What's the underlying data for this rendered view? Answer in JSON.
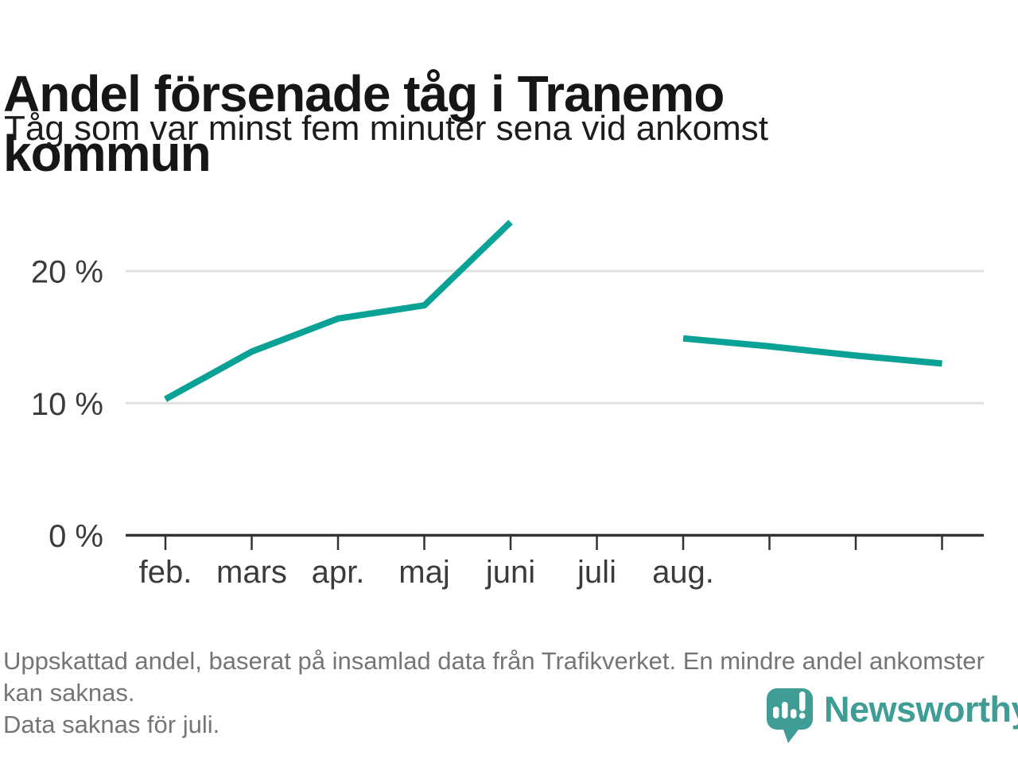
{
  "header": {
    "title": "Andel försenade tåg i Tranemo kommun",
    "subtitle": "Tåg som var minst fem minuter sena vid ankomst"
  },
  "chart_data": {
    "type": "line",
    "title": "Andel försenade tåg i Tranemo kommun",
    "subtitle": "Tåg som var minst fem minuter sena vid ankomst",
    "x_tick_labels": [
      "feb.",
      "mars",
      "apr.",
      "maj",
      "juni",
      "juli",
      "aug."
    ],
    "total_x_ticks": 10,
    "series": [
      {
        "name": "Andel försenade tåg (%)",
        "values": [
          10.3,
          13.9,
          16.4,
          17.4,
          23.7,
          null,
          14.9,
          14.3,
          13.6,
          13.0
        ]
      }
    ],
    "ylim": [
      0,
      25
    ],
    "yticks": [
      {
        "value": 0,
        "label": "0 %"
      },
      {
        "value": 10,
        "label": "10 %"
      },
      {
        "value": 20,
        "label": "20 %"
      }
    ],
    "grid": "horizontal",
    "legend": "none",
    "colors": {
      "line": "#0aa296",
      "gridline": "#e0e0e0",
      "axis": "#333333",
      "axis_text": "#3b3b3b"
    },
    "missing_data": "juli"
  },
  "footer": {
    "notes": [
      "Uppskattad andel, baserat på insamlad data från Trafikverket. En mindre andel ankomster kan saknas.",
      "Data saknas för juli."
    ],
    "brand": "Newsworthy",
    "brand_color": "#3f9d96"
  }
}
